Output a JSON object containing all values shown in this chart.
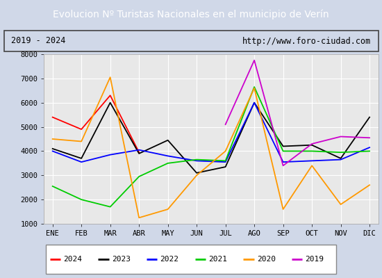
{
  "title": "Evolucion Nº Turistas Nacionales en el municipio de Verín",
  "subtitle_left": "2019 - 2024",
  "subtitle_right": "http://www.foro-ciudad.com",
  "x_labels": [
    "ENE",
    "FEB",
    "MAR",
    "ABR",
    "MAY",
    "JUN",
    "JUL",
    "AGO",
    "SEP",
    "OCT",
    "NOV",
    "DIC"
  ],
  "ylim": [
    1000,
    8000
  ],
  "yticks": [
    1000,
    2000,
    3000,
    4000,
    5000,
    6000,
    7000,
    8000
  ],
  "series": {
    "2024": {
      "color": "#ff0000",
      "values": [
        5400,
        4900,
        6300,
        3950,
        null,
        null,
        null,
        null,
        null,
        null,
        null,
        null
      ]
    },
    "2023": {
      "color": "#000000",
      "values": [
        4100,
        3700,
        6000,
        3900,
        4450,
        3100,
        3350,
        6000,
        4200,
        4250,
        3700,
        5400
      ]
    },
    "2022": {
      "color": "#0000ff",
      "values": [
        4000,
        3550,
        3850,
        4050,
        3800,
        3600,
        3550,
        6000,
        3550,
        3600,
        3650,
        4150
      ]
    },
    "2021": {
      "color": "#00cc00",
      "values": [
        2550,
        2000,
        1700,
        2950,
        3500,
        3650,
        3600,
        6650,
        4000,
        4000,
        3950,
        4000
      ]
    },
    "2020": {
      "color": "#ff9900",
      "values": [
        4500,
        4400,
        7050,
        1250,
        1600,
        3000,
        4000,
        6600,
        1600,
        3400,
        1800,
        2600
      ]
    },
    "2019": {
      "color": "#cc00cc",
      "values": [
        null,
        null,
        null,
        null,
        null,
        null,
        5100,
        7750,
        3400,
        4300,
        4600,
        4550
      ]
    }
  },
  "title_bg": "#4472c4",
  "title_color": "#ffffff",
  "fig_bg": "#d0d8e8",
  "plot_bg": "#e8e8e8",
  "grid_color": "#ffffff",
  "border_color": "#4472c4",
  "subtitle_bg": "#d0d8e8"
}
